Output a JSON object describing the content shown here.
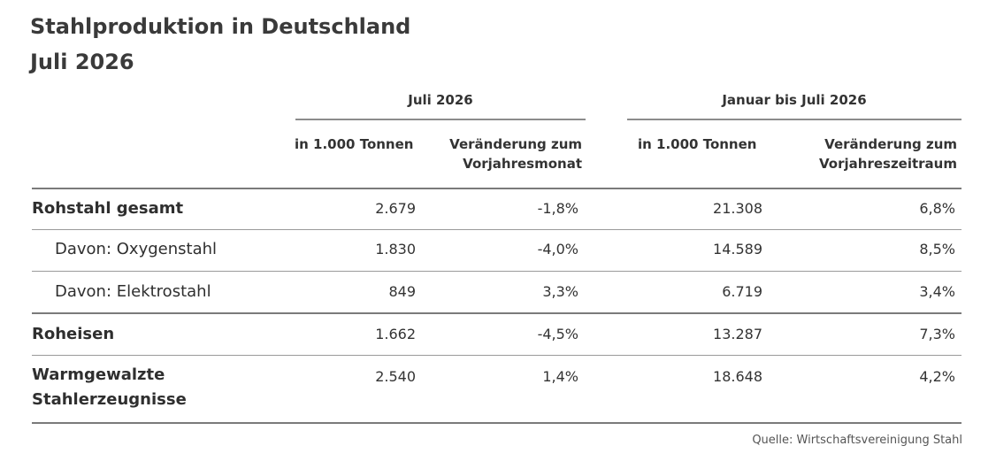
{
  "title_line1": "Stahlproduktion in Deutschland",
  "title_line2": "Juli 2026",
  "chart_data": {
    "type": "table",
    "groups": [
      "Juli 2026",
      "Januar bis Juli 2026"
    ],
    "columns": [
      "in 1.000 Tonnen",
      "Veränderung zum Vorjahresmonat",
      "in 1.000 Tonnen",
      "Veränderung zum Vorjahreszeitraum"
    ],
    "rows": [
      {
        "label": "Rohstahl gesamt",
        "values": [
          "2.679",
          "-1,8%",
          "21.308",
          "6,8%"
        ]
      },
      {
        "label": "Davon: Oxygenstahl",
        "values": [
          "1.830",
          "-4,0%",
          "14.589",
          "8,5%"
        ]
      },
      {
        "label": "Davon: Elektrostahl",
        "values": [
          "849",
          "3,3%",
          "6.719",
          "3,4%"
        ]
      },
      {
        "label": "Roheisen",
        "values": [
          "1.662",
          "-4,5%",
          "13.287",
          "7,3%"
        ]
      },
      {
        "label": "Warmgewalzte Stahlerzeugnisse",
        "values": [
          "2.540",
          "1,4%",
          "18.648",
          "4,2%"
        ]
      }
    ]
  },
  "source": "Quelle: Wirtschaftsvereinigung Stahl"
}
